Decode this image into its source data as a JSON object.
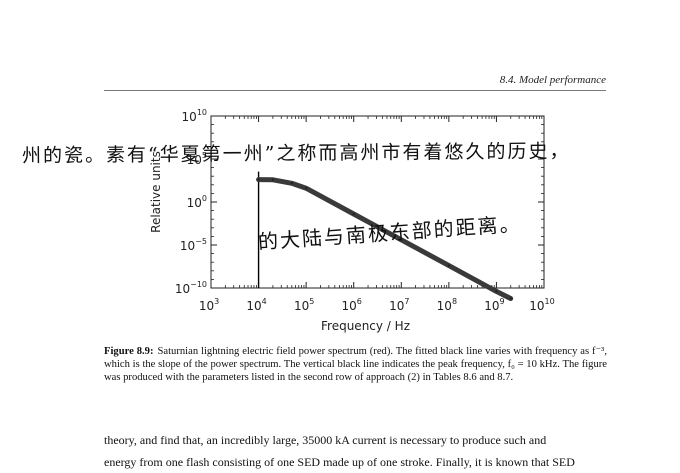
{
  "header": {
    "section": "8.4.  Model performance"
  },
  "chart_data": {
    "type": "line",
    "xlabel": "Frequency  /  Hz",
    "ylabel": "Relative units",
    "x_scale": "log",
    "y_scale": "log",
    "xlim": [
      1000,
      10000000000
    ],
    "ylim": [
      1e-10,
      10000000000.0
    ],
    "x_ticks": [
      {
        "value": 1000,
        "base": "10",
        "exp": "3"
      },
      {
        "value": 10000,
        "base": "10",
        "exp": "4"
      },
      {
        "value": 100000,
        "base": "10",
        "exp": "5"
      },
      {
        "value": 1000000,
        "base": "10",
        "exp": "6"
      },
      {
        "value": 10000000,
        "base": "10",
        "exp": "7"
      },
      {
        "value": 100000000,
        "base": "10",
        "exp": "8"
      },
      {
        "value": 1000000000,
        "base": "10",
        "exp": "9"
      },
      {
        "value": 10000000000,
        "base": "10",
        "exp": "10"
      }
    ],
    "y_ticks": [
      {
        "value": 10000000000.0,
        "base": "10",
        "exp": "10"
      },
      {
        "value": 100000,
        "base": "10",
        "exp": "5"
      },
      {
        "value": 1,
        "base": "10",
        "exp": "0"
      },
      {
        "value": 1e-05,
        "base": "10",
        "exp": "−5"
      },
      {
        "value": 1e-10,
        "base": "10",
        "exp": "−10"
      }
    ],
    "series": [
      {
        "color": "#3a3a3a",
        "x": [
          10000,
          20000,
          50000,
          100000,
          1000000,
          10000000,
          100000000,
          1000000000,
          2000000000
        ],
        "y": [
          400,
          380,
          150,
          40,
          0.04,
          4e-05,
          4e-08,
          4e-11,
          6e-12
        ]
      }
    ],
    "vline": {
      "x": 10000,
      "color": "#000000"
    },
    "grid": false
  },
  "caption": {
    "label": "Figure 8.9:",
    "text": "Saturnian lightning electric field power spectrum (red). The fitted black line varies with frequency as f⁻³, which is the slope of the power spectrum. The vertical black line indicates the peak frequency, f₀ = 10 kHz. The figure was produced with the parameters listed in the second row of approach (2) in Tables 8.6 and 8.7."
  },
  "body": {
    "line1": "theory, and find that, an incredibly large, 35000 kA current is necessary to produce such and",
    "line2": "energy from one flash consisting of one SED made up of one stroke. Finally, it is known that SED"
  },
  "handwriting": {
    "line1": "州的瓷。素有“华夏第一州”之称而高州市有着悠久的历史，",
    "line2": "的大陆与南极东部的距离。"
  }
}
